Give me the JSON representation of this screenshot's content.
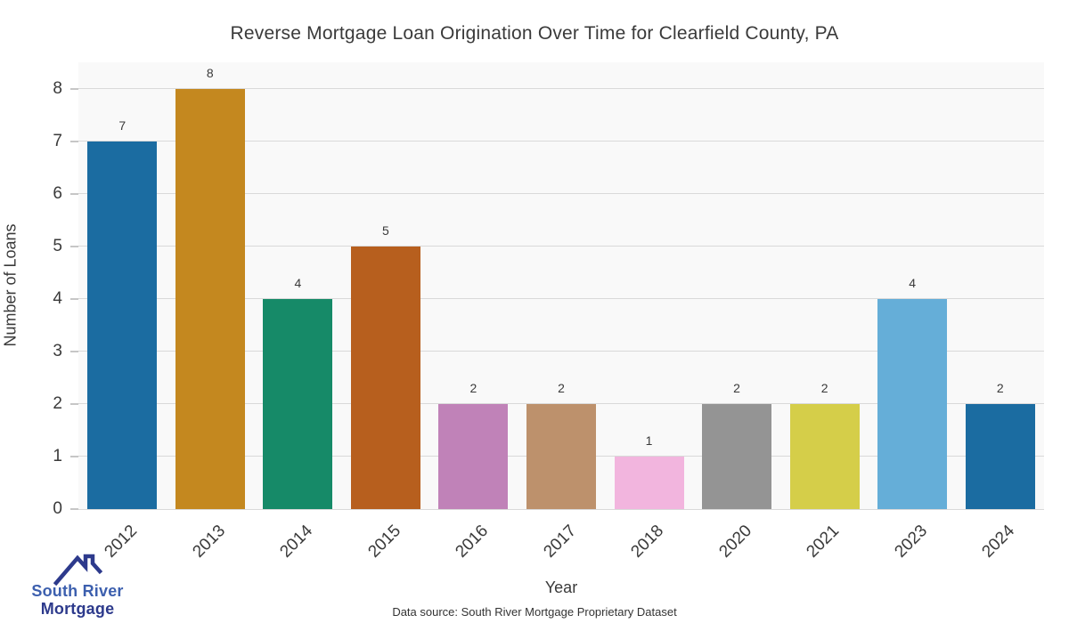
{
  "title": "Reverse Mortgage Loan Origination Over Time for Clearfield County, PA",
  "chart_data": {
    "type": "bar",
    "categories": [
      "2012",
      "2013",
      "2014",
      "2015",
      "2016",
      "2017",
      "2018",
      "2020",
      "2021",
      "2023",
      "2024"
    ],
    "values": [
      7,
      8,
      4,
      5,
      2,
      2,
      1,
      2,
      2,
      4,
      2
    ],
    "bar_colors": [
      "#1b6ca1",
      "#c4881f",
      "#168a68",
      "#b75f1e",
      "#c082b8",
      "#bd916c",
      "#f2b5de",
      "#949494",
      "#d5ce49",
      "#65aed8",
      "#1b6ca1"
    ],
    "title": "Reverse Mortgage Loan Origination Over Time for Clearfield County, PA",
    "xlabel": "Year",
    "ylabel": "Number of Loans",
    "ylim": [
      0,
      8.5
    ],
    "yticks": [
      0,
      1,
      2,
      3,
      4,
      5,
      6,
      7,
      8
    ],
    "grid": true,
    "legend": "none",
    "value_labels": true
  },
  "colors": {
    "plot_bg": "#f9f9f9",
    "grid": "#d9d9d9",
    "tick": "#c6c6c6",
    "text": "#3a3a3a"
  },
  "footer": {
    "data_source": "Data source: South River Mortgage Proprietary Dataset"
  },
  "logo": {
    "line1": "South River",
    "line2": "Mortgage",
    "line1_color": "#3c5fae",
    "line2_color": "#2d3a8c",
    "roof_color": "#2d3a8c"
  }
}
